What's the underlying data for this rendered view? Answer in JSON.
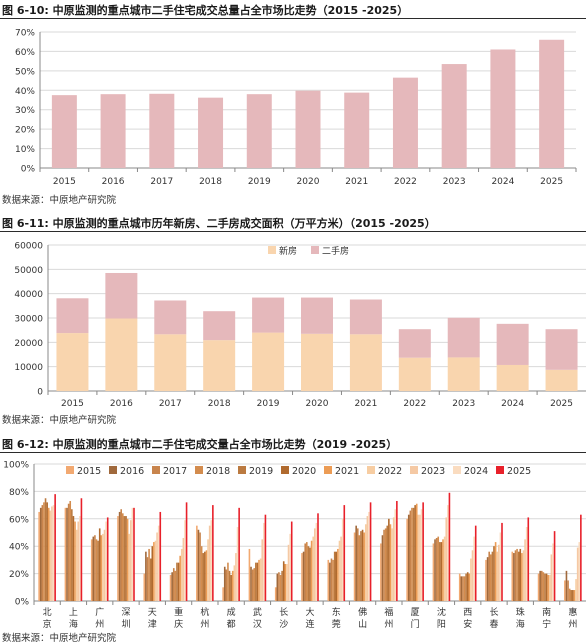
{
  "colors": {
    "rose": "#e5b8bb",
    "peach": "#f9d5ae",
    "red": "#e8202a",
    "grid": "#d9d9d9",
    "axis": "#888888"
  },
  "figures": [
    {
      "title": "图 6-10: 中原监测的重点城市二手住宅成交总量占全市场比走势（2015 -2025）",
      "source": "数据来源：中原地产研究院"
    },
    {
      "title": "图 6-11: 中原监测的重点城市历年新房、二手房成交面积（万平方米）（2015 -2025）",
      "source": "数据来源：中原地产研究院"
    },
    {
      "title": "图 6-12: 中原监测的重点城市二手住宅成交量占全市场比走势（2019 -2025）",
      "source": "数据来源：中原地产研究院"
    }
  ],
  "chart_data": [
    {
      "type": "bar",
      "categories": [
        "2015",
        "2016",
        "2017",
        "2018",
        "2019",
        "2020",
        "2021",
        "2022",
        "2023",
        "2024",
        "2025"
      ],
      "values": [
        37.5,
        38.0,
        38.2,
        36.2,
        38.0,
        39.8,
        38.8,
        46.5,
        53.5,
        61.0,
        66.0
      ],
      "ylim": [
        0,
        70
      ],
      "yticks": [
        "0%",
        "10%",
        "20%",
        "30%",
        "40%",
        "50%",
        "60%",
        "70%"
      ],
      "grid": true,
      "color": "#e5b8bb"
    },
    {
      "type": "bar",
      "stacked": true,
      "categories": [
        "2015",
        "2016",
        "2017",
        "2018",
        "2019",
        "2020",
        "2021",
        "2022",
        "2023",
        "2024",
        "2025"
      ],
      "series": [
        {
          "name": "新房",
          "color": "#f9d5ae",
          "values": [
            23800,
            29800,
            23300,
            20900,
            24000,
            23500,
            23300,
            13700,
            13800,
            10700,
            8700
          ]
        },
        {
          "name": "二手房",
          "color": "#e5b8bb",
          "values": [
            14300,
            18700,
            13900,
            11900,
            14400,
            14900,
            14300,
            11700,
            16300,
            16900,
            16700
          ]
        }
      ],
      "ylim": [
        0,
        60000
      ],
      "yticks": [
        "0",
        "10000",
        "20000",
        "30000",
        "40000",
        "50000",
        "60000"
      ],
      "legend": "top-center",
      "grid": true
    },
    {
      "type": "bar",
      "categories": [
        "北京",
        "上海",
        "广州",
        "深圳",
        "天津",
        "重庆",
        "杭州",
        "成都",
        "武汉",
        "长沙",
        "大连",
        "东莞",
        "佛山",
        "福州",
        "厦门",
        "沈阳",
        "西安",
        "长春",
        "珠海",
        "南宁",
        "惠州"
      ],
      "series": [
        {
          "name": "2015",
          "color": "#f2a971",
          "values": [
            65,
            68,
            45,
            62,
            20,
            19,
            55,
            10,
            38,
            10,
            35,
            30,
            50,
            42,
            60,
            42,
            20,
            30,
            36,
            20,
            15
          ]
        },
        {
          "name": "2016",
          "color": "#a0693c",
          "values": [
            68,
            68,
            47,
            65,
            36,
            21,
            52,
            25,
            25,
            20,
            36,
            28,
            55,
            48,
            63,
            45,
            18,
            32,
            35,
            22,
            22
          ]
        },
        {
          "name": "2017",
          "color": "#c8844c",
          "values": [
            70,
            71,
            48,
            67,
            32,
            24,
            50,
            23,
            23,
            21,
            42,
            31,
            53,
            52,
            66,
            46,
            18,
            36,
            37,
            22,
            15
          ]
        },
        {
          "name": "2018",
          "color": "#d38c4e",
          "values": [
            72,
            73,
            45,
            64,
            38,
            22,
            40,
            28,
            24,
            19,
            43,
            30,
            48,
            53,
            68,
            47,
            18,
            34,
            38,
            21,
            9
          ]
        },
        {
          "name": "2019",
          "color": "#bb7a40",
          "values": [
            75,
            67,
            44,
            62,
            31,
            28,
            35,
            22,
            28,
            22,
            40,
            36,
            51,
            55,
            68,
            43,
            20,
            36,
            36,
            20,
            8
          ]
        },
        {
          "name": "2020",
          "color": "#b06a2e",
          "values": [
            72,
            62,
            53,
            62,
            40,
            28,
            36,
            19,
            28,
            29,
            39,
            36,
            52,
            60,
            70,
            43,
            21,
            40,
            38,
            20,
            8
          ]
        },
        {
          "name": "2021",
          "color": "#ec9c55",
          "values": [
            68,
            58,
            48,
            60,
            43,
            33,
            37,
            22,
            30,
            27,
            44,
            38,
            50,
            56,
            71,
            45,
            20,
            43,
            35,
            19,
            8
          ]
        },
        {
          "name": "2022",
          "color": "#f7cda2",
          "values": [
            66,
            52,
            49,
            49,
            44,
            38,
            45,
            26,
            31,
            27,
            47,
            44,
            56,
            53,
            63,
            47,
            31,
            36,
            37,
            19,
            16
          ]
        },
        {
          "name": "2023",
          "color": "#f5c9a4",
          "values": [
            69,
            58,
            52,
            59,
            50,
            46,
            55,
            35,
            45,
            41,
            53,
            47,
            62,
            61,
            63,
            61,
            37,
            41,
            45,
            34,
            39
          ]
        },
        {
          "name": "2024",
          "color": "#fadcc0",
          "values": [
            70,
            62,
            58,
            68,
            55,
            59,
            59,
            54,
            57,
            49,
            57,
            60,
            65,
            67,
            67,
            70,
            47,
            50,
            54,
            42,
            43
          ]
        },
        {
          "name": "2025",
          "color": "#e8202a",
          "values": [
            78,
            75,
            61,
            68,
            65,
            72,
            70,
            68,
            63,
            58,
            64,
            70,
            72,
            73,
            72,
            79,
            55,
            57,
            61,
            51,
            63
          ]
        }
      ],
      "ylim": [
        0,
        100
      ],
      "yticks": [
        "0%",
        "20%",
        "40%",
        "60%",
        "80%",
        "100%"
      ],
      "legend": "top-center",
      "grid": true
    }
  ]
}
